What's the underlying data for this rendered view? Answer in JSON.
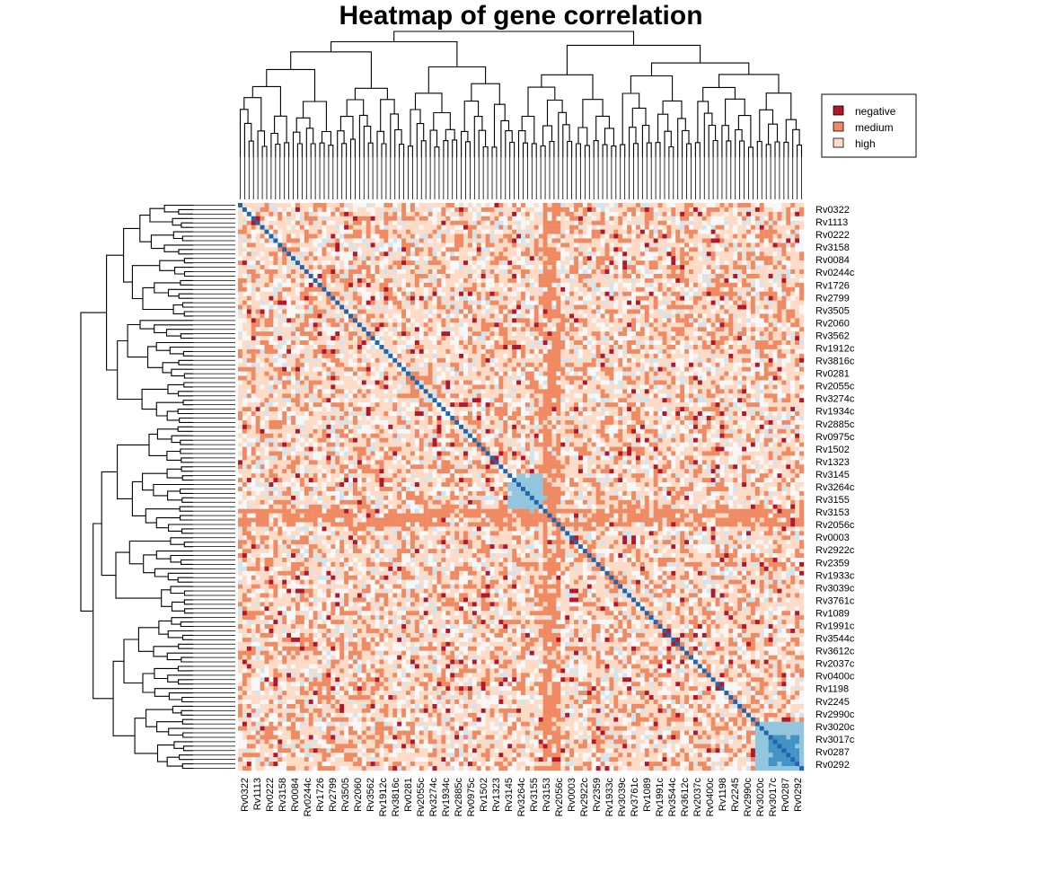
{
  "chart_data": {
    "type": "heatmap",
    "title": "Heatmap of gene correlation",
    "row_labels": [
      "Rv0322",
      "Rv1113",
      "Rv0222",
      "Rv3158",
      "Rv0084",
      "Rv0244c",
      "Rv1726",
      "Rv2799",
      "Rv3505",
      "Rv2060",
      "Rv3562",
      "Rv1912c",
      "Rv3816c",
      "Rv0281",
      "Rv2055c",
      "Rv3274c",
      "Rv1934c",
      "Rv2885c",
      "Rv0975c",
      "Rv1502",
      "Rv1323",
      "Rv3145",
      "Rv3264c",
      "Rv3155",
      "Rv3153",
      "Rv2056c",
      "Rv0003",
      "Rv2922c",
      "Rv2359",
      "Rv1933c",
      "Rv3039c",
      "Rv3761c",
      "Rv1089",
      "Rv1991c",
      "Rv3544c",
      "Rv3612c",
      "Rv2037c",
      "Rv0400c",
      "Rv1198",
      "Rv2245",
      "Rv2990c",
      "Rv3020c",
      "Rv3017c",
      "Rv0287",
      "Rv0292"
    ],
    "col_labels": [
      "Rv0322",
      "Rv1113",
      "Rv0222",
      "Rv3158",
      "Rv0084",
      "Rv0244c",
      "Rv1726",
      "Rv2799",
      "Rv3505",
      "Rv2060",
      "Rv3562",
      "Rv1912c",
      "Rv3816c",
      "Rv0281",
      "Rv2055c",
      "Rv3274c",
      "Rv1934c",
      "Rv2885c",
      "Rv0975c",
      "Rv1502",
      "Rv1323",
      "Rv3145",
      "Rv3264c",
      "Rv3155",
      "Rv3153",
      "Rv2056c",
      "Rv0003",
      "Rv2922c",
      "Rv2359",
      "Rv1933c",
      "Rv3039c",
      "Rv3761c",
      "Rv1089",
      "Rv1991c",
      "Rv3544c",
      "Rv3612c",
      "Rv2037c",
      "Rv0400c",
      "Rv1198",
      "Rv2245",
      "Rv2990c",
      "Rv3020c",
      "Rv3017c",
      "Rv0287",
      "Rv0292"
    ],
    "legend": [
      {
        "label": "negative",
        "color": "#b2182b"
      },
      {
        "label": "medium",
        "color": "#ef8a62"
      },
      {
        "label": "high",
        "color": "#fddbc7"
      }
    ],
    "legend_position": "top-right",
    "dendrogram_rows": true,
    "dendrogram_cols": true,
    "diagonal_value": "high correlation (blue)",
    "colors": {
      "dark_red": "#b2182b",
      "orange": "#ef8a62",
      "light_salmon": "#fddbc7",
      "very_light": "#f7f7f7",
      "light_blue": "#d1e5f0",
      "mid_blue": "#92c5de",
      "blue": "#4393c3",
      "dark_blue": "#2166ac"
    }
  }
}
